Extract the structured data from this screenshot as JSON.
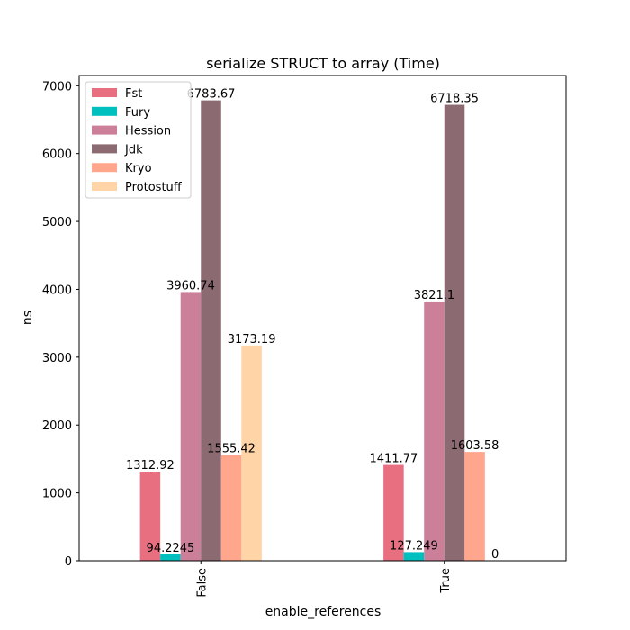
{
  "chart_data": {
    "type": "bar",
    "title": "serialize STRUCT to array (Time)",
    "xlabel": "enable_references",
    "ylabel": "ns",
    "categories": [
      "False",
      "True"
    ],
    "ylim": [
      0,
      7150
    ],
    "yticks": [
      0,
      1000,
      2000,
      3000,
      4000,
      5000,
      6000,
      7000
    ],
    "grid": false,
    "legend_position": "top-left",
    "series": [
      {
        "name": "Fst",
        "color": "#e86f80",
        "values": [
          1312.92,
          1411.77
        ],
        "labels": [
          "1312.92",
          "1411.77"
        ]
      },
      {
        "name": "Fury",
        "color": "#00bfbf",
        "values": [
          94.2245,
          127.249
        ],
        "labels": [
          "94.2245",
          "127.249"
        ]
      },
      {
        "name": "Hession",
        "color": "#cc7f99",
        "values": [
          3960.74,
          3821.1
        ],
        "labels": [
          "3960.74",
          "3821.1"
        ]
      },
      {
        "name": "Jdk",
        "color": "#8c6a72",
        "values": [
          6783.67,
          6718.35
        ],
        "labels": [
          "6783.67",
          "6718.35"
        ]
      },
      {
        "name": "Kryo",
        "color": "#ffa68c",
        "values": [
          1555.42,
          1603.58
        ],
        "labels": [
          "1555.42",
          "1603.58"
        ]
      },
      {
        "name": "Protostuff",
        "color": "#ffd4a6",
        "values": [
          3173.19,
          0
        ],
        "labels": [
          "3173.19",
          "0"
        ]
      }
    ]
  }
}
